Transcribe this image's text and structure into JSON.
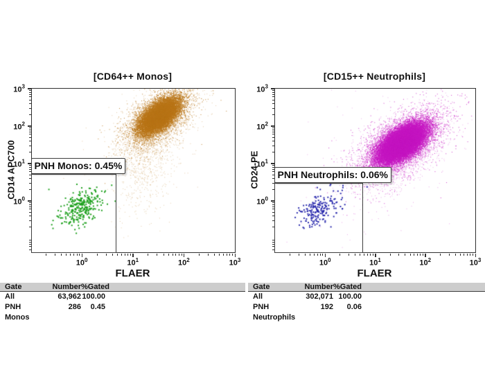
{
  "chart_data": [
    {
      "type": "scatter",
      "title": "[CD64++ Monos]",
      "xlabel": "FLAER",
      "ylabel": "CD14 APC700",
      "x_log_range": [
        -0.98,
        3
      ],
      "y_log_range": [
        -1.37,
        3
      ],
      "x_tick_exponents": [
        0,
        1,
        2,
        3
      ],
      "y_tick_exponents": [
        0,
        1,
        2,
        3
      ],
      "grid": false,
      "gate": {
        "label": "PNH Monos: 0.45%",
        "x_max_log": 0.68,
        "y_top_log": 0.72
      },
      "clusters": [
        {
          "name": "CD64++ monocytes (FLAER+) core",
          "color": "#b97618",
          "count": 15000,
          "cx": 1.51,
          "cy": 2.28,
          "sx": 0.2,
          "sy": 0.24,
          "corr": 0.6,
          "size": 1,
          "alpha": 0.9
        },
        {
          "name": "CD64++ monocytes halo",
          "color": "#b97618",
          "count": 3000,
          "cx": 1.47,
          "cy": 2.12,
          "sx": 0.33,
          "sy": 0.42,
          "corr": 0.55,
          "size": 1,
          "alpha": 0.4
        },
        {
          "name": "monocyte comet tail",
          "color": "#b97618",
          "count": 650,
          "cx": 1.28,
          "cy": 1.15,
          "sx": 0.27,
          "sy": 0.7,
          "corr": 0.35,
          "size": 1,
          "alpha": 0.38
        },
        {
          "name": "PNH Monos (FLAER-)",
          "color": "#1fa11f",
          "count": 286,
          "cx": -0.05,
          "cy": -0.18,
          "sx": 0.2,
          "sy": 0.24,
          "corr": 0.5,
          "size": 2,
          "alpha": 1
        }
      ]
    },
    {
      "type": "scatter",
      "title": "[CD15++ Neutrophils]",
      "xlabel": "FLAER",
      "ylabel": "CD24-PE",
      "x_log_range": [
        -1.0,
        3
      ],
      "y_log_range": [
        -1.37,
        3
      ],
      "x_tick_exponents": [
        0,
        1,
        2,
        3
      ],
      "y_tick_exponents": [
        0,
        1,
        2,
        3
      ],
      "grid": false,
      "gate": {
        "label": "PNH Neutrophils: 0.06%",
        "x_max_log": 0.76,
        "y_top_log": 0.48
      },
      "clusters": [
        {
          "name": "CD15++ neutrophils (FLAER+) core",
          "color": "#c517c2",
          "count": 26000,
          "cx": 1.53,
          "cy": 1.55,
          "sx": 0.24,
          "sy": 0.26,
          "corr": 0.6,
          "size": 1,
          "alpha": 0.85
        },
        {
          "name": "CD15++ neutrophils halo",
          "color": "#c517c2",
          "count": 5000,
          "cx": 1.5,
          "cy": 1.45,
          "sx": 0.38,
          "sy": 0.42,
          "corr": 0.55,
          "size": 1,
          "alpha": 0.35
        },
        {
          "name": "neutrophil sparse tail",
          "color": "#c517c2",
          "count": 220,
          "cx": 1.15,
          "cy": 0.75,
          "sx": 0.45,
          "sy": 0.55,
          "corr": 0.3,
          "size": 1,
          "alpha": 0.4
        },
        {
          "name": "PNH Neutrophils (FLAER-)",
          "color": "#2a2aad",
          "count": 192,
          "cx": -0.14,
          "cy": -0.22,
          "sx": 0.19,
          "sy": 0.21,
          "corr": 0.45,
          "size": 2,
          "alpha": 1
        }
      ]
    }
  ],
  "tables": {
    "left": {
      "headers": [
        "Gate",
        "Number",
        "%Gated"
      ],
      "rows": [
        [
          "All",
          "63,962",
          "100.00"
        ],
        [
          "PNH Monos",
          "286",
          "0.45"
        ]
      ]
    },
    "right": {
      "headers": [
        "Gate",
        "Number",
        "%Gated"
      ],
      "rows": [
        [
          "All",
          "302,071",
          "100.00"
        ],
        [
          "PNH Neutrophils",
          "192",
          "0.06"
        ]
      ]
    }
  },
  "colors": {
    "plot_border": "#2e2e2e",
    "gate_border": "#3d3d3d",
    "table_header_bg": "#cdcdcd",
    "background": "#ffffff"
  }
}
